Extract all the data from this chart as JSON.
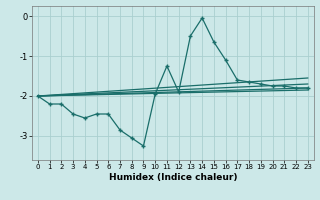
{
  "xlabel": "Humidex (Indice chaleur)",
  "background_color": "#cce8e8",
  "grid_color": "#aacfcf",
  "line_color": "#1a6e6a",
  "xlim": [
    -0.5,
    23.5
  ],
  "ylim": [
    -3.6,
    0.25
  ],
  "yticks": [
    0,
    -1,
    -2,
    -3
  ],
  "xticks": [
    0,
    1,
    2,
    3,
    4,
    5,
    6,
    7,
    8,
    9,
    10,
    11,
    12,
    13,
    14,
    15,
    16,
    17,
    18,
    19,
    20,
    21,
    22,
    23
  ],
  "series": [
    [
      0,
      -2.0
    ],
    [
      1,
      -2.2
    ],
    [
      2,
      -2.2
    ],
    [
      3,
      -2.45
    ],
    [
      4,
      -2.55
    ],
    [
      5,
      -2.45
    ],
    [
      6,
      -2.45
    ],
    [
      7,
      -2.85
    ],
    [
      8,
      -3.05
    ],
    [
      9,
      -3.25
    ],
    [
      10,
      -1.95
    ],
    [
      11,
      -1.25
    ],
    [
      12,
      -1.9
    ],
    [
      13,
      -0.5
    ],
    [
      14,
      -0.05
    ],
    [
      15,
      -0.65
    ],
    [
      16,
      -1.1
    ],
    [
      17,
      -1.6
    ],
    [
      18,
      -1.65
    ],
    [
      19,
      -1.7
    ],
    [
      20,
      -1.75
    ],
    [
      21,
      -1.75
    ],
    [
      22,
      -1.8
    ],
    [
      23,
      -1.8
    ]
  ],
  "trend_lines": [
    [
      [
        0,
        -2.0
      ],
      [
        23,
        -1.55
      ]
    ],
    [
      [
        0,
        -2.0
      ],
      [
        23,
        -1.7
      ]
    ],
    [
      [
        0,
        -2.0
      ],
      [
        23,
        -1.8
      ]
    ],
    [
      [
        0,
        -2.0
      ],
      [
        23,
        -1.85
      ]
    ]
  ]
}
